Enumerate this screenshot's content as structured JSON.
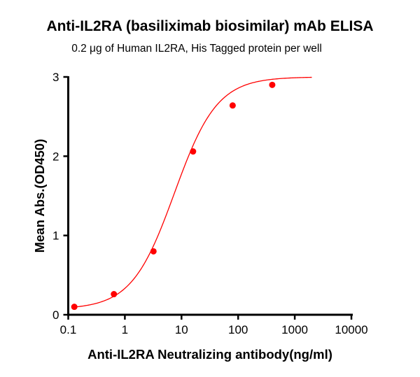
{
  "chart_data": {
    "type": "scatter",
    "title": "Anti-IL2RA (basiliximab biosimilar) mAb ELISA",
    "subtitle": "0.2 μg of Human IL2RA, His Tagged protein per well",
    "xlabel": "Anti-IL2RA Neutralizing antibody(ng/ml)",
    "ylabel": "Mean Abs.(OD450)",
    "xscale": "log",
    "xlim": [
      0.1,
      10000
    ],
    "ylim": [
      0,
      3
    ],
    "xticks": [
      "0.1",
      "1",
      "10",
      "100",
      "1000",
      "10000"
    ],
    "yticks": [
      "0",
      "1",
      "2",
      "3"
    ],
    "grid": false,
    "color": "#ff0000",
    "points": {
      "x": [
        0.128,
        0.64,
        3.2,
        16,
        80,
        400
      ],
      "y": [
        0.1,
        0.26,
        0.8,
        2.06,
        2.64,
        2.9
      ]
    },
    "fit_curve": {
      "model": "4PL",
      "bottom": 0.07,
      "top": 3.0,
      "ec50": 7.5,
      "hill": 1.15,
      "x_range": [
        0.128,
        2000
      ]
    }
  }
}
